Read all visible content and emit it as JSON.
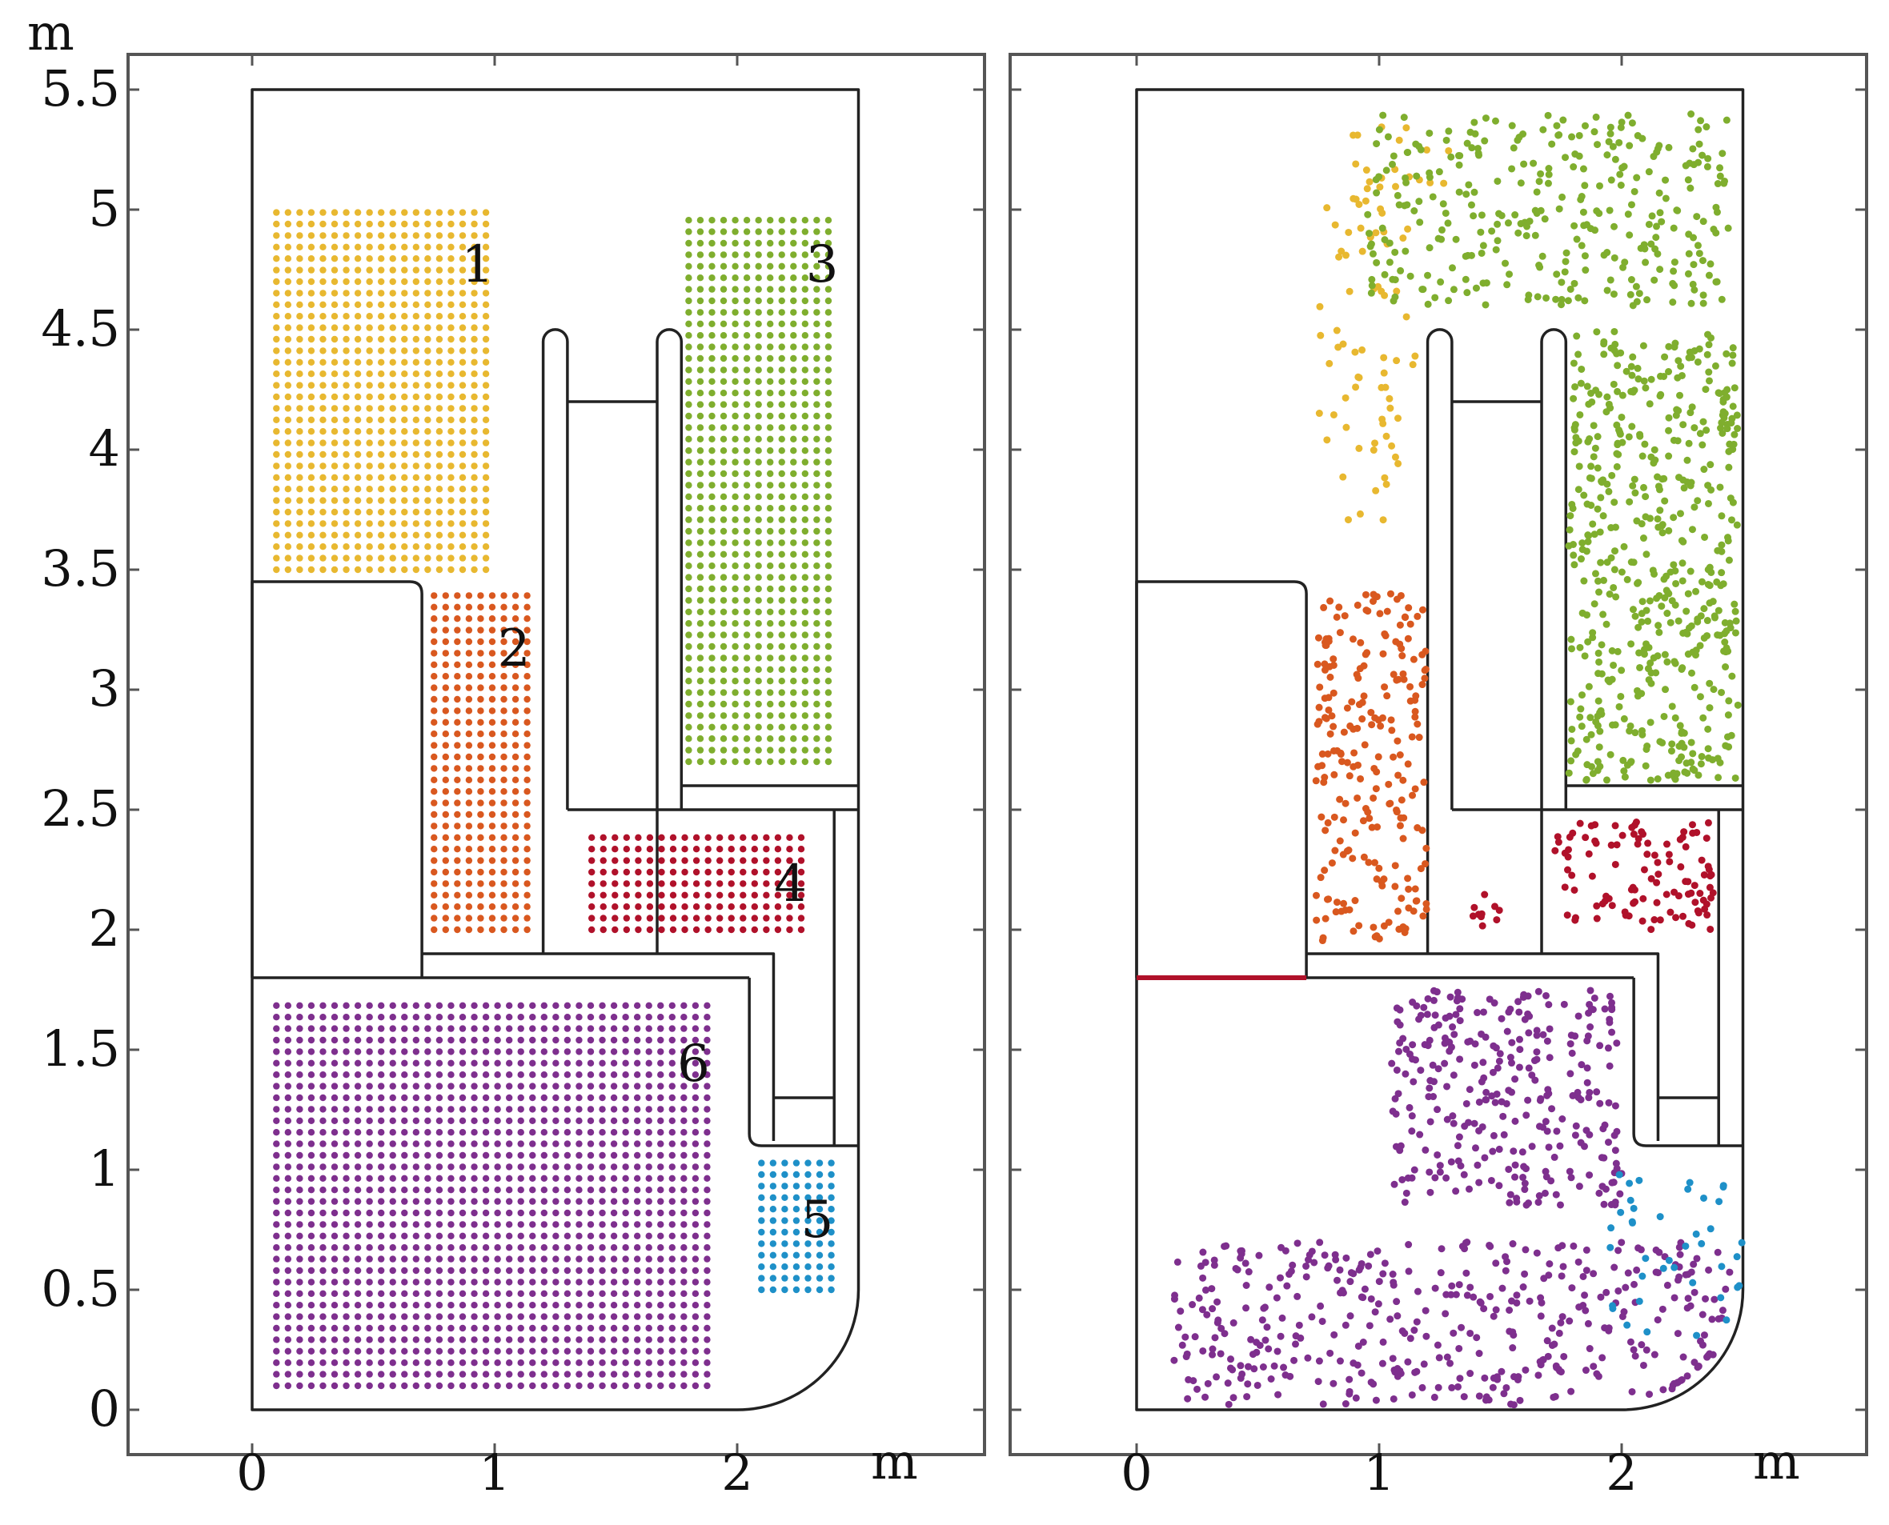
{
  "colors": {
    "region_1": "#E8B830",
    "region_2": "#D9581F",
    "region_3": "#7FAE2E",
    "region_4": "#B0112A",
    "region_5": "#1E90C8",
    "region_6": "#7E2F8E",
    "floor_line": "#B0112A"
  },
  "chart_data": [
    {
      "type": "scatter",
      "panel": "left",
      "x_unit": "m",
      "y_unit": "m",
      "xlim": [
        -0.5,
        3.0
      ],
      "ylim": [
        -0.15,
        5.65
      ],
      "x_ticks": [
        "0",
        "1",
        "2"
      ],
      "y_ticks": [
        "0",
        "0.5",
        "1",
        "1.5",
        "2",
        "2.5",
        "3",
        "3.5",
        "4",
        "4.5",
        "5",
        "5.5"
      ],
      "grid": false,
      "description_of_marks": "regular grids of particles filling six regions",
      "regions": [
        {
          "label": "1",
          "x": [
            0.1,
            1.0
          ],
          "y": [
            3.5,
            5.0
          ],
          "spacing": 0.048
        },
        {
          "label": "2",
          "x": [
            0.75,
            1.15
          ],
          "y": [
            2.0,
            3.4
          ],
          "spacing": 0.048
        },
        {
          "label": "3",
          "x": [
            1.8,
            2.4
          ],
          "y": [
            2.7,
            5.0
          ],
          "spacing": 0.048
        },
        {
          "label": "4",
          "x": [
            1.4,
            2.3
          ],
          "y": [
            2.0,
            2.4
          ],
          "spacing": 0.048
        },
        {
          "label": "5",
          "x": [
            2.1,
            2.42
          ],
          "y": [
            0.5,
            1.05
          ],
          "spacing": 0.048
        },
        {
          "label": "6",
          "x": [
            0.1,
            1.9
          ],
          "y": [
            0.1,
            1.7
          ],
          "spacing": 0.048
        }
      ],
      "label_positions": {
        "1": [
          0.93,
          4.7
        ],
        "2": [
          1.08,
          3.1
        ],
        "3": [
          2.35,
          4.7
        ],
        "4": [
          2.22,
          2.12
        ],
        "5": [
          2.33,
          0.72
        ],
        "6": [
          1.82,
          1.37
        ]
      }
    },
    {
      "type": "scatter",
      "panel": "right",
      "x_unit": "m",
      "y_unit": "m",
      "xlim": [
        -0.5,
        3.0
      ],
      "ylim": [
        -0.15,
        5.65
      ],
      "x_ticks": [
        "0",
        "1",
        "2"
      ],
      "grid": false,
      "description_of_marks": "scattered particles after flow, colored by initial region",
      "clusters": [
        {
          "region": "1",
          "count": 70,
          "x": [
            0.75,
            1.15
          ],
          "y": [
            3.7,
            5.1
          ]
        },
        {
          "region": "1",
          "count": 20,
          "x": [
            0.85,
            1.3
          ],
          "y": [
            5.0,
            5.35
          ]
        },
        {
          "region": "3",
          "count": 320,
          "x": [
            0.95,
            2.45
          ],
          "y": [
            4.6,
            5.4
          ]
        },
        {
          "region": "3",
          "count": 520,
          "x": [
            1.78,
            2.48
          ],
          "y": [
            2.62,
            4.5
          ]
        },
        {
          "region": "2",
          "count": 230,
          "x": [
            0.74,
            1.2
          ],
          "y": [
            1.95,
            3.4
          ]
        },
        {
          "region": "4",
          "count": 110,
          "x": [
            1.72,
            2.38
          ],
          "y": [
            2.0,
            2.45
          ]
        },
        {
          "region": "4",
          "count": 10,
          "x": [
            1.38,
            1.5
          ],
          "y": [
            2.0,
            2.15
          ]
        },
        {
          "region": "6",
          "count": 300,
          "x": [
            1.05,
            2.0
          ],
          "y": [
            0.85,
            1.75
          ]
        },
        {
          "region": "6",
          "count": 420,
          "x": [
            0.15,
            2.45
          ],
          "y": [
            0.02,
            0.7
          ]
        },
        {
          "region": "5",
          "count": 40,
          "x": [
            1.95,
            2.5
          ],
          "y": [
            0.3,
            1.0
          ]
        }
      ]
    }
  ],
  "axis_labels": {
    "unit_top": "m",
    "left_unit_bottom": "m",
    "right_unit_bottom": "m"
  }
}
